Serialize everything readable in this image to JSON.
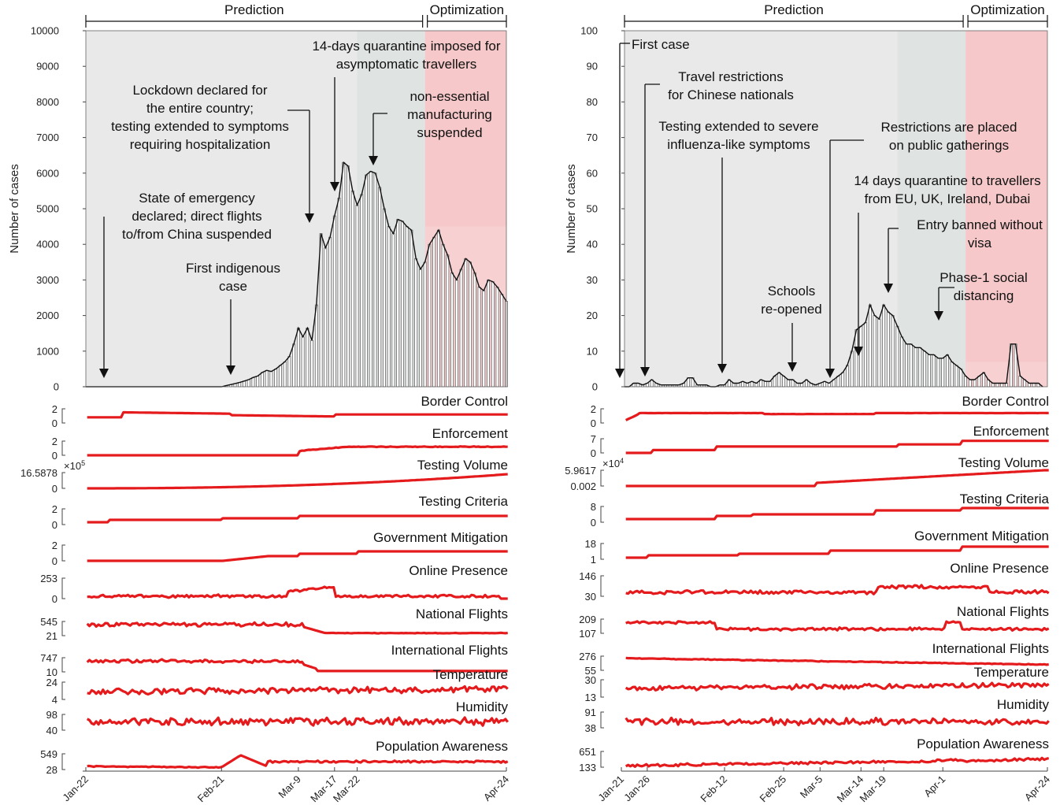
{
  "chart_data": [
    {
      "type": "bar",
      "panel": "left",
      "ylabel": "Number of cases",
      "ylim": [
        0,
        10000
      ],
      "yticks": [
        0,
        1000,
        2000,
        3000,
        4000,
        5000,
        6000,
        7000,
        8000,
        9000,
        10000
      ],
      "xtick_labels": [
        "Jan-22",
        "Feb-21",
        "Mar-9",
        "Mar-17",
        "Mar-22",
        "Apr-24"
      ],
      "xticks_day": [
        0,
        30,
        47,
        55,
        60,
        93
      ],
      "days": 93,
      "phases": [
        {
          "label": "Prediction",
          "from": 0,
          "to": 75
        },
        {
          "label": "Optimization",
          "from": 75,
          "to": 93
        }
      ],
      "cases": [
        0,
        0,
        0,
        0,
        0,
        0,
        0,
        0,
        0,
        0,
        0,
        0,
        0,
        0,
        0,
        0,
        0,
        0,
        0,
        0,
        0,
        0,
        0,
        0,
        0,
        0,
        0,
        0,
        0,
        0,
        0,
        30,
        60,
        90,
        120,
        160,
        200,
        260,
        300,
        400,
        460,
        430,
        500,
        600,
        700,
        850,
        1200,
        1650,
        1400,
        1650,
        1300,
        2300,
        4300,
        3900,
        4200,
        4800,
        5300,
        6300,
        6200,
        5500,
        5100,
        5400,
        5950,
        6050,
        6000,
        5600,
        5000,
        4500,
        4300,
        4700,
        4650,
        4500,
        4400,
        3600,
        3300,
        3500,
        4000,
        4200,
        4400,
        4000,
        3700,
        3200,
        3000,
        3300,
        3600,
        3500,
        3200,
        2800,
        2700,
        3000,
        2950,
        2800,
        2600,
        2400
      ],
      "annotations": [
        {
          "lines": [
            "State of emergency",
            "declared; direct flights",
            "to/from China suspended"
          ],
          "day": 4
        },
        {
          "lines": [
            "First indigenous",
            "case"
          ],
          "day": 32
        },
        {
          "lines": [
            "Lockdown declared for",
            "the entire country;",
            "testing extended to symptoms",
            "requiring hospitalization"
          ],
          "day": 50
        },
        {
          "lines": [
            "14-days quarantine imposed for",
            "asymptomatic travellers"
          ],
          "day": 55
        },
        {
          "lines": [
            "non-essential",
            "manufacturing",
            "suspended"
          ],
          "day": 62
        }
      ],
      "indicators": [
        {
          "label": "Border Control",
          "ticks": [
            "2",
            "0"
          ]
        },
        {
          "label": "Enforcement",
          "ticks": [
            "2",
            "0"
          ]
        },
        {
          "label": "Testing Volume",
          "ticks": [
            "16.5878",
            "0"
          ],
          "exponent": "×10^5"
        },
        {
          "label": "Testing Criteria",
          "ticks": [
            "2",
            "0"
          ]
        },
        {
          "label": "Government Mitigation",
          "ticks": [
            "2",
            "0"
          ]
        },
        {
          "label": "Online Presence",
          "ticks": [
            "253",
            "0"
          ]
        },
        {
          "label": "National Flights",
          "ticks": [
            "545",
            "21"
          ]
        },
        {
          "label": "International Flights",
          "ticks": [
            "747",
            "10"
          ]
        },
        {
          "label": "Temperature",
          "ticks": [
            "24",
            "4"
          ]
        },
        {
          "label": "Humidity",
          "ticks": [
            "98",
            "40"
          ]
        },
        {
          "label": "Population Awareness",
          "ticks": [
            "549",
            "28"
          ]
        }
      ]
    },
    {
      "type": "bar",
      "panel": "right",
      "ylabel": "Number of cases",
      "ylim": [
        0,
        100
      ],
      "yticks": [
        0,
        10,
        20,
        30,
        40,
        50,
        60,
        70,
        80,
        90,
        100
      ],
      "xtick_labels": [
        "Jan-21",
        "Jan-26",
        "Feb-12",
        "Feb-25",
        "Mar-5",
        "Mar-14",
        "Mar-19",
        "Apr-1",
        "Apr-24"
      ],
      "xticks_day": [
        0,
        5,
        22,
        35,
        43,
        52,
        57,
        70,
        93
      ],
      "days": 93,
      "phases": [
        {
          "label": "Prediction",
          "from": 0,
          "to": 75
        },
        {
          "label": "Optimization",
          "from": 75,
          "to": 93
        }
      ],
      "cases": [
        0,
        0,
        1,
        1,
        0.5,
        1,
        2,
        1,
        0.5,
        0.5,
        0.5,
        0.5,
        0.5,
        1,
        2.5,
        2.5,
        0.5,
        0.5,
        0.5,
        0,
        0,
        0.5,
        0.5,
        2,
        1,
        1,
        1.5,
        1,
        1.5,
        1,
        2,
        1.5,
        1.5,
        3,
        4,
        3,
        2,
        2,
        1,
        1,
        2,
        1,
        0.5,
        1,
        1.5,
        1,
        2,
        3,
        4,
        6,
        10,
        16,
        17,
        18,
        23,
        20,
        19,
        23,
        21,
        20,
        17,
        14,
        12,
        12,
        11,
        11,
        10,
        9,
        9,
        8,
        8,
        9,
        7,
        6,
        5,
        3,
        2,
        2,
        3,
        4,
        2,
        1,
        1,
        1,
        1,
        12,
        12,
        3,
        2,
        1,
        1,
        1,
        0
      ],
      "annotations": [
        {
          "lines": [
            "First case"
          ],
          "day": 0
        },
        {
          "lines": [
            "Travel restrictions",
            "for Chinese nationals"
          ],
          "day": 5
        },
        {
          "lines": [
            "Testing extended to severe",
            "influenza-like symptoms"
          ],
          "day": 22
        },
        {
          "lines": [
            "Schools",
            "re-opened"
          ],
          "day": 37
        },
        {
          "lines": [
            "Restrictions are placed",
            "on public gatherings"
          ],
          "day": 45
        },
        {
          "lines": [
            "14 days quarantine to travellers",
            "from EU, UK, Ireland, Dubai"
          ],
          "day": 52
        },
        {
          "lines": [
            "Entry banned without",
            "visa"
          ],
          "day": 58
        },
        {
          "lines": [
            "Phase-1 social",
            "distancing"
          ],
          "day": 70
        }
      ],
      "indicators": [
        {
          "label": "Border Control",
          "ticks": [
            "2",
            "0"
          ]
        },
        {
          "label": "Enforcement",
          "ticks": [
            "7",
            "0"
          ]
        },
        {
          "label": "Testing Volume",
          "ticks": [
            "5.9617",
            "0.002"
          ],
          "exponent": "×10^4"
        },
        {
          "label": "Testing Criteria",
          "ticks": [
            "8",
            "0"
          ]
        },
        {
          "label": "Government Mitigation",
          "ticks": [
            "18",
            "1"
          ]
        },
        {
          "label": "Online Presence",
          "ticks": [
            "146",
            "30"
          ]
        },
        {
          "label": "National Flights",
          "ticks": [
            "209",
            "107"
          ]
        },
        {
          "label": "International Flights",
          "ticks": [
            "276",
            "55"
          ]
        },
        {
          "label": "Temperature",
          "ticks": [
            "30",
            "13"
          ]
        },
        {
          "label": "Humidity",
          "ticks": [
            "91",
            "38"
          ]
        },
        {
          "label": "Population Awareness",
          "ticks": [
            "651",
            "133"
          ]
        }
      ]
    }
  ],
  "colors": {
    "prediction_shade": "#e9e9e9",
    "prediction_dark_shade": "#dfe3e1",
    "optimization_shade": "#f6c8c9",
    "optimization_light": "#f9d6d7",
    "bars": "#555555",
    "indicator_line": "#e41a1c",
    "case_line": "#111111"
  }
}
